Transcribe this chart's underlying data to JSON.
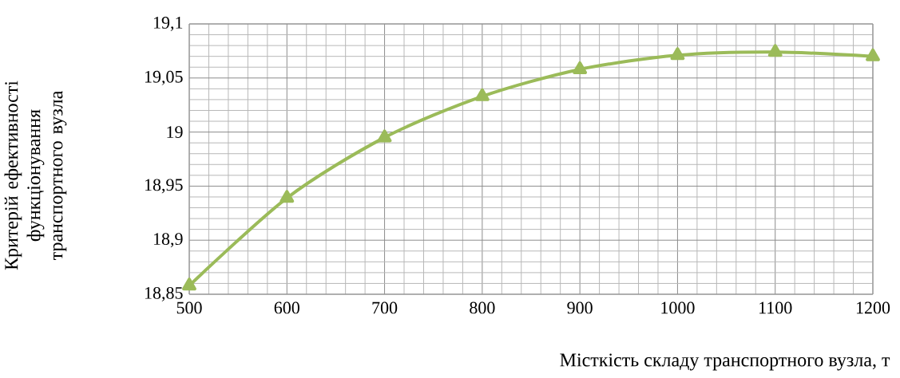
{
  "chart_data": {
    "type": "line",
    "xlabel": "Місткість складу транспортного вузла, т",
    "ylabel": "Критерій ефективності функціонування транспортного вузла",
    "x": [
      500,
      600,
      700,
      800,
      900,
      1000,
      1100,
      1200
    ],
    "series": [
      {
        "color": "#9bbb59",
        "values": [
          18.858,
          18.939,
          18.995,
          19.033,
          19.058,
          19.071,
          19.074,
          19.07
        ]
      }
    ],
    "xlim": [
      500,
      1200
    ],
    "xticks": [
      500,
      600,
      700,
      800,
      900,
      1000,
      1100,
      1200
    ],
    "ylim": [
      18.85,
      19.1
    ],
    "yticks": [
      {
        "value": 18.85,
        "label": "18,85"
      },
      {
        "value": 18.9,
        "label": "18,9"
      },
      {
        "value": 18.95,
        "label": "18,95"
      },
      {
        "value": 19,
        "label": "19"
      },
      {
        "value": 19.05,
        "label": "19,05"
      },
      {
        "value": 19.1,
        "label": "19,1"
      }
    ],
    "grid": true,
    "marker": "triangle",
    "line_style": "solid"
  }
}
